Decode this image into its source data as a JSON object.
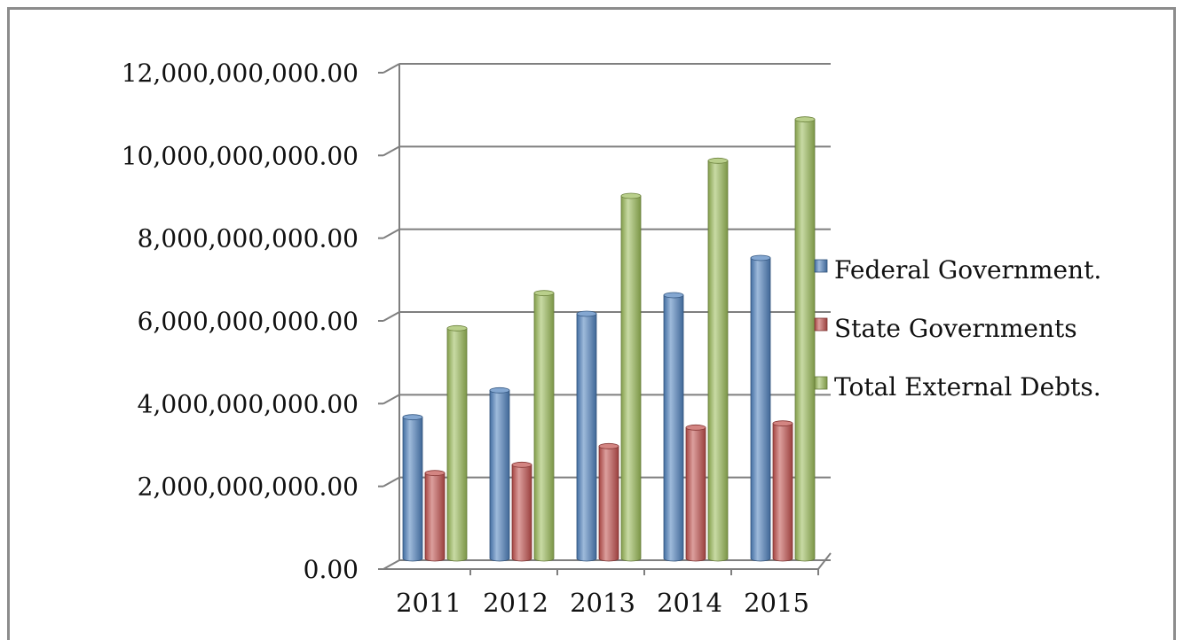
{
  "chart_data": {
    "type": "bar",
    "title": "",
    "xlabel": "",
    "ylabel": "",
    "categories": [
      "2011",
      "2012",
      "2013",
      "2014",
      "2015"
    ],
    "series": [
      {
        "name": "Federal Government.",
        "color": "#4f81bd",
        "values": [
          3500000000,
          4150000000,
          6000000000,
          6450000000,
          7350000000
        ]
      },
      {
        "name": "State Governments",
        "color": "#c0504d",
        "values": [
          2150000000,
          2350000000,
          2800000000,
          3250000000,
          3350000000
        ]
      },
      {
        "name": "Total External Debts.",
        "color": "#9bbb59",
        "values": [
          5650000000,
          6500000000,
          8850000000,
          9700000000,
          10700000000
        ]
      }
    ],
    "ylim": [
      0,
      12000000000
    ],
    "yticks": [
      0,
      2000000000,
      4000000000,
      6000000000,
      8000000000,
      10000000000,
      12000000000
    ],
    "ytick_labels": [
      "0.00",
      "2,000,000,000.00",
      "4,000,000,000.00",
      "6,000,000,000.00",
      "8,000,000,000.00",
      "10,000,000,000.00",
      "12,000,000,000.00"
    ],
    "grid": true,
    "legend": "right",
    "style": "3d-cylinder"
  }
}
